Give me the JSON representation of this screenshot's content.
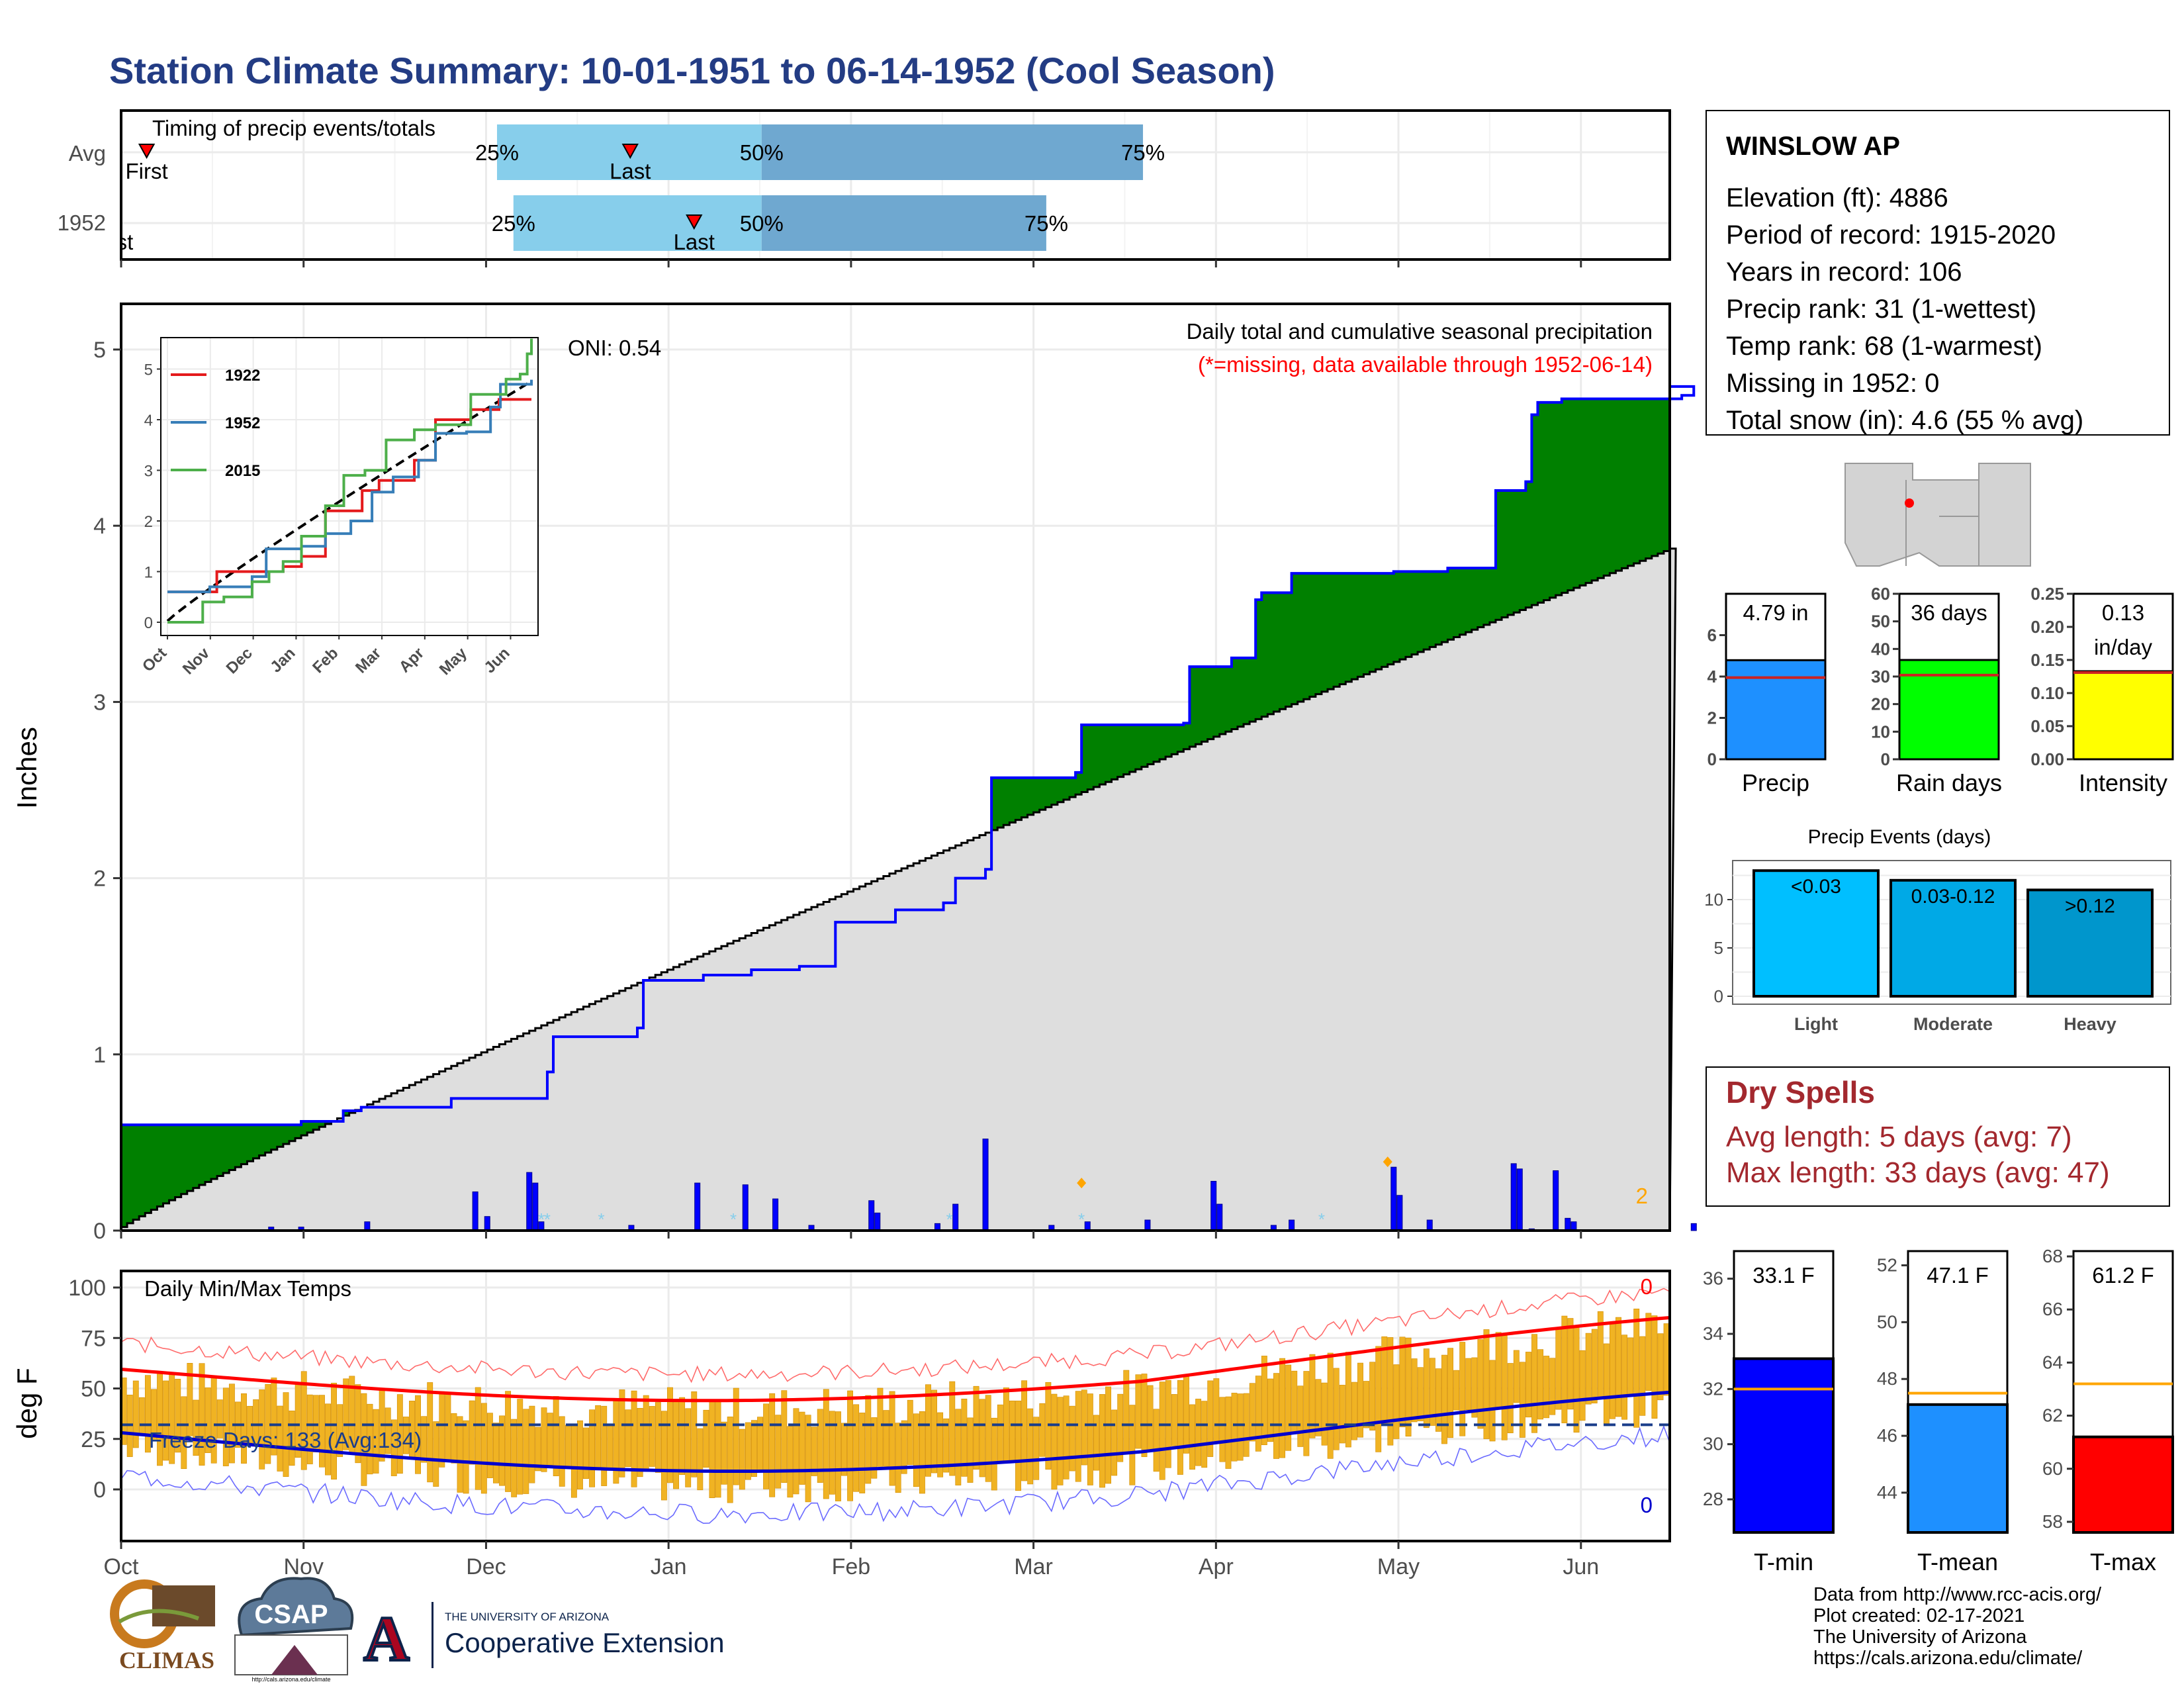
{
  "page": {
    "title": "Station Climate Summary: 10-01-1951 to 06-14-1952 (Cool Season)"
  },
  "timing": {
    "title": "Timing of precip events/totals",
    "rows": [
      {
        "label": "Avg",
        "first_label": "First",
        "last_label": "Last",
        "first": 0.14,
        "last": 2.79,
        "p25": 2.06,
        "p50": 3.51,
        "p75": 5.6
      },
      {
        "label": "1952",
        "first_label": "First",
        "last_label": "Last",
        "first": -0.05,
        "last": 3.14,
        "p25": 2.15,
        "p50": 3.51,
        "p75": 5.07
      }
    ],
    "pct_labels": [
      "25%",
      "50%",
      "75%"
    ]
  },
  "months": [
    "Oct",
    "Nov",
    "Dec",
    "Jan",
    "Feb",
    "Mar",
    "Apr",
    "May",
    "Jun"
  ],
  "station": {
    "name": "WINSLOW AP",
    "lines": [
      "Elevation (ft): 4886",
      "Period of record: 1915-2020",
      "Years in record: 106",
      "Precip rank: 31 (1-wettest)",
      "Temp rank: 68 (1-warmest)",
      "Missing in 1952: 0",
      "Total snow (in): 4.6 (55 % avg)"
    ]
  },
  "map": {
    "dot_color": "#ff0000",
    "land_color": "#d3d3d3"
  },
  "precip_panel": {
    "ylabel": "Inches",
    "title": "Daily total and cumulative seasonal precipitation",
    "subtitle": "(*=missing, data available through 1952-06-14)",
    "oni": "ONI: 0.54",
    "corner_count": "2",
    "yticks": [
      "0",
      "1",
      "2",
      "3",
      "4",
      "5"
    ],
    "colors": {
      "surplus": "#008000",
      "deficit": "#8b5a12",
      "normal_fill": "#dedede",
      "obs_line": "#0000ff",
      "bars": "#0000ff"
    }
  },
  "inset": {
    "yticks": [
      "0",
      "1",
      "2",
      "3",
      "4",
      "5"
    ],
    "months": [
      "Oct",
      "Nov",
      "Dec",
      "Jan",
      "Feb",
      "Mar",
      "Apr",
      "May",
      "Jun"
    ],
    "legend": [
      {
        "name": "1922",
        "color": "#e41a1c"
      },
      {
        "name": "1952",
        "color": "#377eb8"
      },
      {
        "name": "2015",
        "color": "#4daf4a"
      }
    ]
  },
  "temp_panel": {
    "ylabel": "deg F",
    "title": "Daily Min/Max Temps",
    "freeze": "Freeze Days: 133 (Avg:134)",
    "count_hot": "0",
    "count_cold": "0",
    "yticks": [
      "0",
      "25",
      "50",
      "75",
      "100"
    ],
    "colors": {
      "bars": "#f0b323",
      "max_line": "#ff0000",
      "min_line": "#0000cd"
    }
  },
  "mini_bars": [
    {
      "label": "Precip",
      "value_text": "4.79 in",
      "value": 4.79,
      "avg": 3.95,
      "ymax": 8,
      "ticks": [
        "0",
        "2",
        "4",
        "6"
      ],
      "tickvals": [
        0,
        2,
        4,
        6
      ],
      "color": "#1e90ff"
    },
    {
      "label": "Rain days",
      "value_text": "36 days",
      "value": 36,
      "avg": 30.5,
      "ymax": 60,
      "ticks": [
        "0",
        "10",
        "20",
        "30",
        "40",
        "50",
        "60"
      ],
      "tickvals": [
        0,
        10,
        20,
        30,
        40,
        50,
        60
      ],
      "color": "#00ff00"
    },
    {
      "label": "Intensity",
      "value_text": "0.13",
      "value_text2": "in/day",
      "value": 0.133,
      "avg": 0.131,
      "ymax": 0.25,
      "ticks": [
        "0.00",
        "0.05",
        "0.10",
        "0.15",
        "0.20",
        "0.25"
      ],
      "tickvals": [
        0,
        0.05,
        0.1,
        0.15,
        0.2,
        0.25
      ],
      "color": "#ffff00"
    }
  ],
  "events": {
    "title": "Precip Events (days)",
    "yticks": [
      "0",
      "5",
      "10"
    ],
    "bars": [
      {
        "cat": "Light",
        "label": "<0.03",
        "value": 13,
        "color": "#00bfff"
      },
      {
        "cat": "Moderate",
        "label": "0.03-0.12",
        "value": 12,
        "color": "#00a9e6"
      },
      {
        "cat": "Heavy",
        "label": ">0.12",
        "value": 11,
        "color": "#0096cc"
      }
    ]
  },
  "dry_spells": {
    "title": "Dry Spells",
    "avg_line": "Avg length: 5 days (avg: 7)",
    "max_line": "Max length: 33 days (avg: 47)"
  },
  "temp_bars": [
    {
      "label": "T-min",
      "value_text": "33.1 F",
      "value": 33.1,
      "avg": 32.0,
      "ymin": 26.8,
      "ymax": 37.0,
      "ticks": [
        "28",
        "30",
        "32",
        "34",
        "36"
      ],
      "tickvals": [
        28,
        30,
        32,
        34,
        36
      ],
      "color": "#0000ff"
    },
    {
      "label": "T-mean",
      "value_text": "47.1 F",
      "value": 47.1,
      "avg": 47.5,
      "ymin": 42.6,
      "ymax": 52.5,
      "ticks": [
        "44",
        "46",
        "48",
        "50",
        "52"
      ],
      "tickvals": [
        44,
        46,
        48,
        50,
        52
      ],
      "color": "#1e90ff"
    },
    {
      "label": "T-max",
      "value_text": "61.2 F",
      "value": 61.2,
      "avg": 63.2,
      "ymin": 57.6,
      "ymax": 68.2,
      "ticks": [
        "58",
        "60",
        "62",
        "64",
        "66",
        "68"
      ],
      "tickvals": [
        58,
        60,
        62,
        64,
        66,
        68
      ],
      "color": "#ff0000"
    }
  ],
  "footer": {
    "lines": [
      "Data from http://www.rcc-acis.org/",
      "Plot created: 02-17-2021",
      "The University of Arizona",
      "https://cals.arizona.edu/climate/"
    ],
    "climas": "CLIMAS",
    "csap": "CSAP",
    "csap_url": "http://cals.arizona.edu/climate",
    "ua_small": "THE UNIVERSITY OF ARIZONA",
    "ua_big": "Cooperative Extension"
  }
}
